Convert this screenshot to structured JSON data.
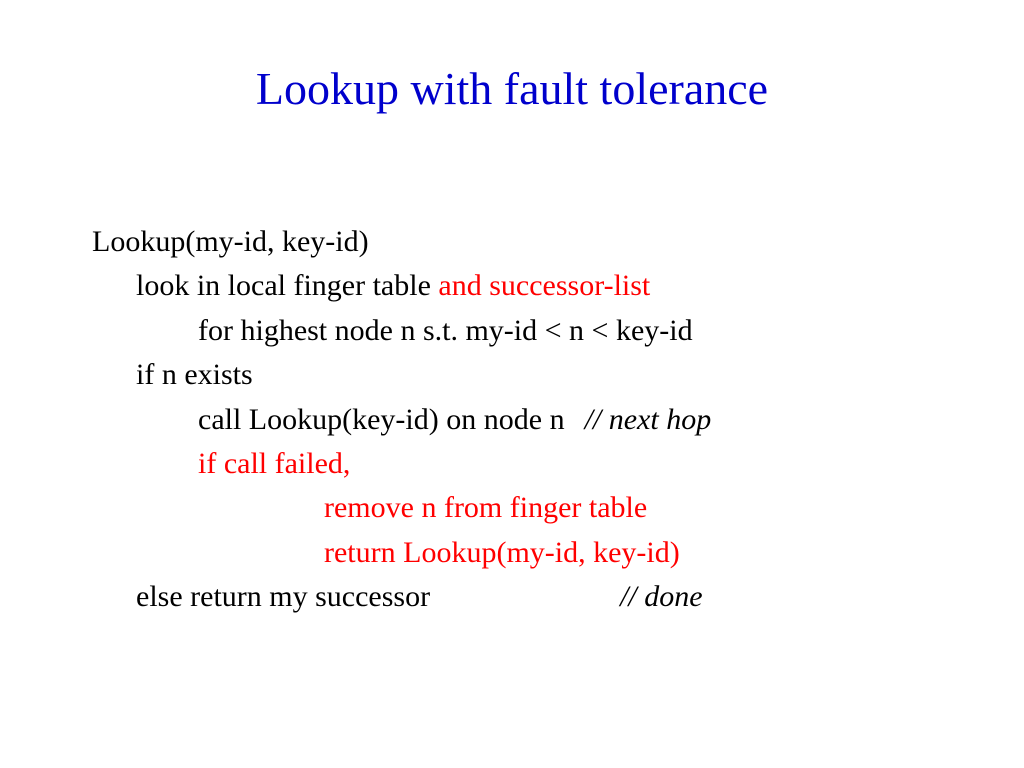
{
  "colors": {
    "title": "#0000cc",
    "highlight": "#ff0000",
    "text": "#000000",
    "background": "#ffffff"
  },
  "typography": {
    "title_fontsize": 46,
    "body_fontsize": 30,
    "font_family": "Times New Roman"
  },
  "title": "Lookup with fault tolerance",
  "line1": "Lookup(my-id, key-id)",
  "line2a": "look in local finger table ",
  "line2b": "and successor-list",
  "line3": "for highest node n s.t. my-id < n < key-id",
  "line4": "if n exists",
  "line5a": "call Lookup(key-id) on node n",
  "line5b": "// next hop",
  "line6": "if call failed,",
  "line7": "remove n from finger table",
  "line8": "return Lookup(my-id, key-id)",
  "line9a": "else return my successor",
  "line9b": "// done"
}
